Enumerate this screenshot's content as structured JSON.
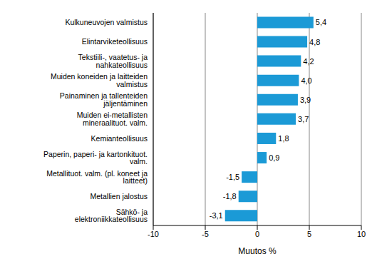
{
  "chart_data": {
    "type": "bar",
    "orientation": "horizontal",
    "categories": [
      "Kulkuneuvojen valmistus",
      "Elintarviketeollisuus",
      "Tekstiili-, vaatetus- ja nahkateollisuus",
      "Muiden koneiden ja laitteiden valmistus",
      "Painaminen ja tallenteiden jäljentäminen",
      "Muiden ei-metallisten mineraalituot. valm.",
      "Kemianteollisuus",
      "Paperin, paperi- ja kartonkituot. valm.",
      "Metallituot. valm. (pl. koneet ja laitteet)",
      "Metallien jalostus",
      "Sähkö- ja elektroniikkateollisuus"
    ],
    "values": [
      5.4,
      4.8,
      4.2,
      4.0,
      3.9,
      3.7,
      1.8,
      0.9,
      -1.5,
      -1.8,
      -3.1
    ],
    "value_labels": [
      "5,4",
      "4,8",
      "4,2",
      "4,0",
      "3,9",
      "3,7",
      "1,8",
      "0,9",
      "-1,5",
      "-1,8",
      "-3,1"
    ],
    "data_labels": true,
    "color": "#1b9ad6",
    "xlabel": "Muutos %",
    "xlim": [
      -10,
      10
    ],
    "xticks": [
      -10,
      -5,
      0,
      5,
      10
    ],
    "grid": true
  }
}
